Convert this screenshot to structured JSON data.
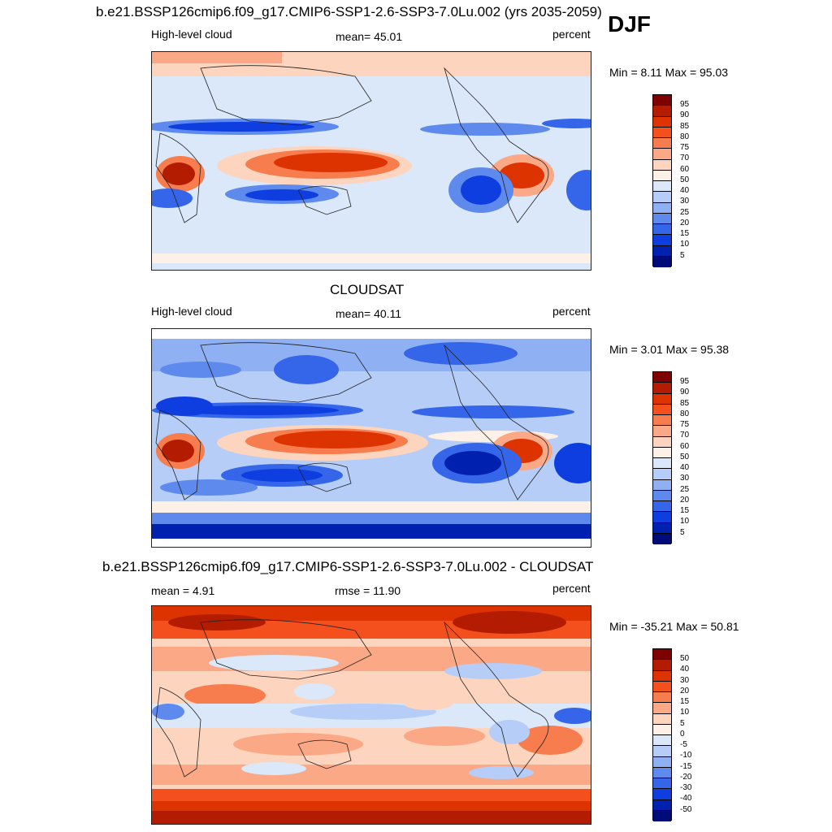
{
  "season": "DJF",
  "panel1": {
    "title": "b.e21.BSSP126cmip6.f09_g17.CMIP6-SSP1-2.6-SSP3-7.0Lu.002 (yrs 2035-2059)",
    "left_label": "High-level cloud",
    "mean_label": "mean=  45.01",
    "units": "percent",
    "minmax": "Min =   8.11 Max =  95.03",
    "levels": [
      "95",
      "90",
      "85",
      "80",
      "75",
      "70",
      "60",
      "50",
      "40",
      "30",
      "25",
      "20",
      "15",
      "10",
      "5"
    ]
  },
  "panel2": {
    "title": "CLOUDSAT",
    "left_label": "High-level cloud",
    "mean_label": "mean=  40.11",
    "units": "percent",
    "minmax": "Min =   3.01 Max =  95.38",
    "levels": [
      "95",
      "90",
      "85",
      "80",
      "75",
      "70",
      "60",
      "50",
      "40",
      "30",
      "25",
      "20",
      "15",
      "10",
      "5"
    ]
  },
  "panel3": {
    "title": "b.e21.BSSP126cmip6.f09_g17.CMIP6-SSP1-2.6-SSP3-7.0Lu.002 - CLOUDSAT",
    "left_label": "mean =   4.91",
    "mean_label": "rmse =  11.90",
    "units": "percent",
    "minmax": "Min = -35.21 Max =  50.81",
    "levels": [
      "50",
      "40",
      "30",
      "20",
      "15",
      "10",
      "5",
      "0",
      "-5",
      "-10",
      "-15",
      "-20",
      "-30",
      "-40",
      "-50"
    ]
  },
  "colors": {
    "colorbar": [
      "#7f0000",
      "#b31c00",
      "#dd3300",
      "#f4501d",
      "#f87d4e",
      "#fba886",
      "#fdd4be",
      "#fdf0e6",
      "#dbe8fa",
      "#b5cdf7",
      "#8fb0f2",
      "#5e8aee",
      "#3566ea",
      "#0f3ee0",
      "#0020b0",
      "#000b7a"
    ]
  }
}
